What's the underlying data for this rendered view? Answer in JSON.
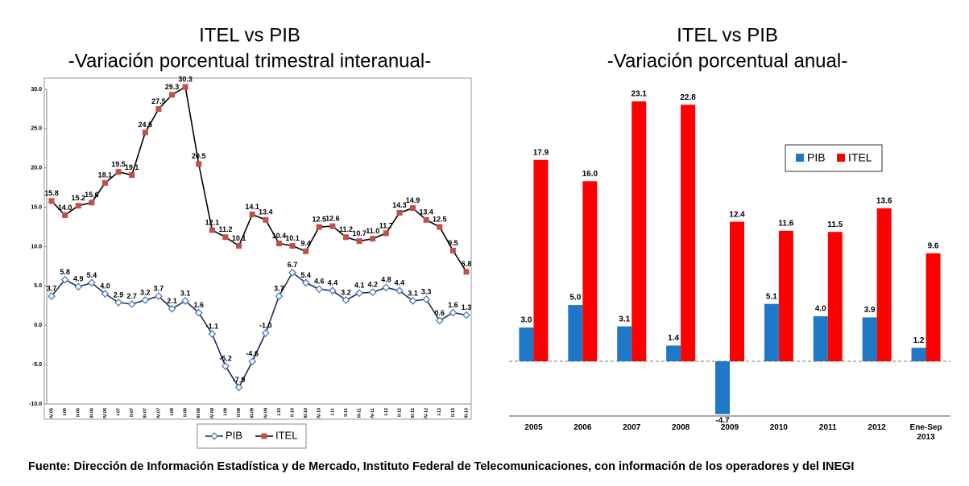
{
  "chart_data": [
    {
      "type": "line",
      "title": "ITEL vs PIB",
      "subtitle": "-Variación porcentual trimestral interanual-",
      "categories": [
        "IV-05",
        "I-06",
        "II-06",
        "III-06",
        "IV-06",
        "I-07",
        "II-07",
        "III-07",
        "IV-07",
        "I-08",
        "II-08",
        "III-08",
        "IV-08",
        "I-09",
        "II-09",
        "III-09",
        "IV-09",
        "I-10",
        "II-10",
        "III-10",
        "IV-10",
        "I-11",
        "II-11",
        "III-11",
        "IV-11",
        "I-12",
        "II-12",
        "III-12",
        "IV-12",
        "I-13",
        "II-13",
        "III-13"
      ],
      "series": [
        {
          "name": "PIB",
          "color": "#4a7ebb",
          "line_color": "#1f2d5a",
          "marker": "diamond",
          "values": [
            3.7,
            5.8,
            4.9,
            5.4,
            4.0,
            2.9,
            2.7,
            3.2,
            3.7,
            2.1,
            3.1,
            1.6,
            -1.1,
            -5.2,
            -7.9,
            -4.6,
            -1.0,
            3.7,
            6.7,
            5.4,
            4.6,
            4.4,
            3.2,
            4.1,
            4.2,
            4.8,
            4.4,
            3.1,
            3.3,
            0.6,
            1.6,
            1.3
          ],
          "value_labels": [
            "3.7",
            "5.8",
            "4.9",
            "5.4",
            "4.0",
            "2.9",
            "2.7",
            "3.2",
            "3.7",
            "2.1",
            "3.1",
            "1.6",
            "-1.1",
            "-5.2",
            "-7.9",
            "-4.6",
            "-1.0",
            "3.7",
            "6.7",
            "5.4",
            "4.6",
            "4.4",
            "3.2",
            "4.1",
            "4.2",
            "4.8",
            "4.4",
            "3.1",
            "3.3",
            "0.6",
            "1.6",
            "1.3"
          ]
        },
        {
          "name": "ITEL",
          "color": "#c0504d",
          "line_color": "#000000",
          "marker": "square",
          "values": [
            15.8,
            14.0,
            15.2,
            15.6,
            18.1,
            19.5,
            19.1,
            24.5,
            27.5,
            29.3,
            30.3,
            20.5,
            12.1,
            11.2,
            10.1,
            14.1,
            13.4,
            10.4,
            10.1,
            9.4,
            12.5,
            12.6,
            11.2,
            10.7,
            11.0,
            11.7,
            14.3,
            14.9,
            13.4,
            12.5,
            9.5,
            6.8
          ],
          "value_labels": [
            "15.8",
            "14.0",
            "15.2",
            "15.6",
            "18.1",
            "19.5",
            "19.1",
            "24.5",
            "27.5",
            "29.3",
            "30.3",
            "20.5",
            "12.1",
            "11.2",
            "10.1",
            "14.1",
            "13.4",
            "10.4",
            "10.1",
            "9.4",
            "12.5",
            "12.6",
            "11.2",
            "10.7",
            "11.0",
            "11.7",
            "14.3",
            "14.9",
            "13.4",
            "12.5",
            "9.5",
            "6.8"
          ]
        }
      ],
      "ylim": [
        -10,
        30
      ],
      "yticks": [
        {
          "value": -10,
          "label": "-10.0"
        },
        {
          "value": -5,
          "label": "-5.0"
        },
        {
          "value": 0,
          "label": "0.0"
        },
        {
          "value": 5,
          "label": "5.0"
        },
        {
          "value": 10,
          "label": "10.0"
        },
        {
          "value": 15,
          "label": "15.0"
        },
        {
          "value": 20,
          "label": "20.0"
        },
        {
          "value": 25,
          "label": "25.0"
        },
        {
          "value": 30,
          "label": "30.0"
        }
      ],
      "legend": "bottom"
    },
    {
      "type": "bar",
      "title": "ITEL vs PIB",
      "subtitle": "-Variación porcentual anual-",
      "categories": [
        "2005",
        "2006",
        "2007",
        "2008",
        "2009",
        "2010",
        "2011",
        "2012",
        "Ene-Sep 2013"
      ],
      "series": [
        {
          "name": "PIB",
          "color": "#1f77c8",
          "values": [
            3.0,
            5.0,
            3.1,
            1.4,
            -4.7,
            5.1,
            4.0,
            3.9,
            1.2
          ],
          "value_labels": [
            "3.0",
            "5.0",
            "3.1",
            "1.4",
            "-4.7",
            "5.1",
            "4.0",
            "3.9",
            "1.2"
          ]
        },
        {
          "name": "ITEL",
          "color": "#ff0000",
          "values": [
            17.9,
            16.0,
            23.1,
            22.8,
            12.4,
            11.6,
            11.5,
            13.6,
            9.6
          ],
          "value_labels": [
            "17.9",
            "16.0",
            "23.1",
            "22.8",
            "12.4",
            "11.6",
            "11.5",
            "13.6",
            "9.6"
          ]
        }
      ],
      "legend": "top"
    }
  ],
  "source": "Fuente: Dirección de Información Estadística y de Mercado, Instituto Federal de Telecomunicaciones, con información de los operadores y del INEGI"
}
